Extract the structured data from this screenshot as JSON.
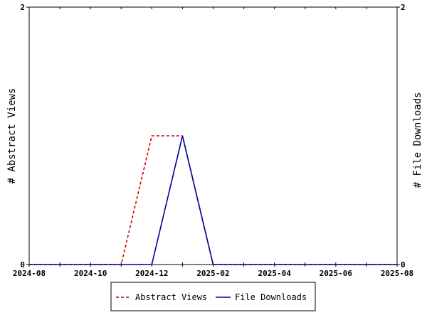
{
  "chart_data": {
    "type": "line",
    "x_kind": "date",
    "x": [
      "2024-08",
      "2024-09",
      "2024-10",
      "2024-11",
      "2024-12",
      "2025-01",
      "2025-02",
      "2025-03",
      "2025-04",
      "2025-05",
      "2025-06",
      "2025-07",
      "2025-08"
    ],
    "x_ticks": [
      "2024-08",
      "2024-10",
      "2024-12",
      "2025-02",
      "2025-04",
      "2025-06",
      "2025-08"
    ],
    "xlim": [
      "2024-08",
      "2025-08"
    ],
    "y_left": {
      "label": "# Abstract Views",
      "ylim": [
        0,
        2
      ],
      "ticks": [
        "0",
        "2"
      ]
    },
    "y_right": {
      "label": "# File Downloads",
      "ylim": [
        0,
        2
      ],
      "ticks": [
        "0",
        "2"
      ]
    },
    "grid": false,
    "legend_position": "bottom",
    "series": [
      {
        "name": "Abstract Views",
        "axis": "left",
        "color": "#cc0000",
        "style": "dashed",
        "values": [
          0,
          0,
          0,
          0,
          1,
          1,
          0,
          0,
          0,
          0,
          0,
          0,
          0
        ]
      },
      {
        "name": "File Downloads",
        "axis": "right",
        "color": "#000099",
        "style": "solid",
        "values": [
          0,
          0,
          0,
          0,
          0,
          1,
          0,
          0,
          0,
          0,
          0,
          0,
          0
        ]
      }
    ]
  }
}
